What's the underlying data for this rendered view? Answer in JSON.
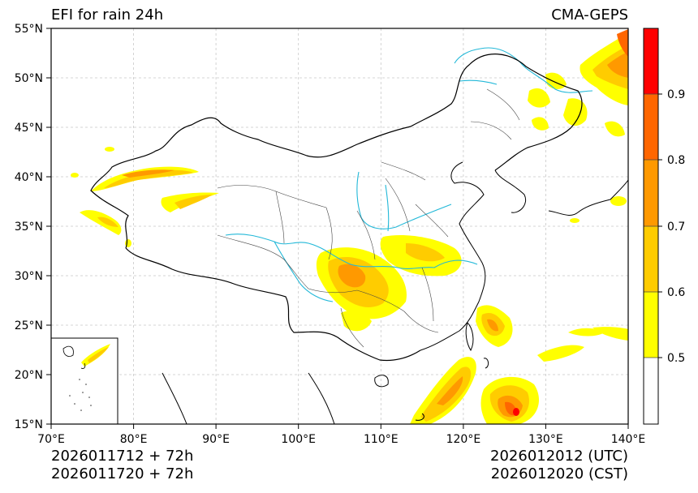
{
  "header": {
    "title": "EFI for rain 24h",
    "model": "CMA-GEPS"
  },
  "footer": {
    "init_utc": "2026011712 + 72h",
    "init_cst": "2026011720 + 72h",
    "valid_utc": "2026012012 (UTC)",
    "valid_cst": "2026012020 (CST)"
  },
  "map": {
    "lon_range": [
      70,
      140
    ],
    "lat_range": [
      15,
      55
    ],
    "lon_ticks": [
      "70°E",
      "80°E",
      "90°E",
      "100°E",
      "110°E",
      "120°E",
      "130°E",
      "140°E"
    ],
    "lat_ticks": [
      "15°N",
      "20°N",
      "25°N",
      "30°N",
      "35°N",
      "40°N",
      "45°N",
      "50°N",
      "55°N"
    ]
  },
  "colorbar": {
    "levels": [
      0.5,
      0.6,
      0.7,
      0.8,
      0.9
    ],
    "labels": [
      "0.5",
      "0.6",
      "0.7",
      "0.8",
      "0.9"
    ],
    "colors": [
      "#ffffff",
      "#ffff00",
      "#ffcc00",
      "#ff9900",
      "#ff6600",
      "#ff0000"
    ]
  }
}
